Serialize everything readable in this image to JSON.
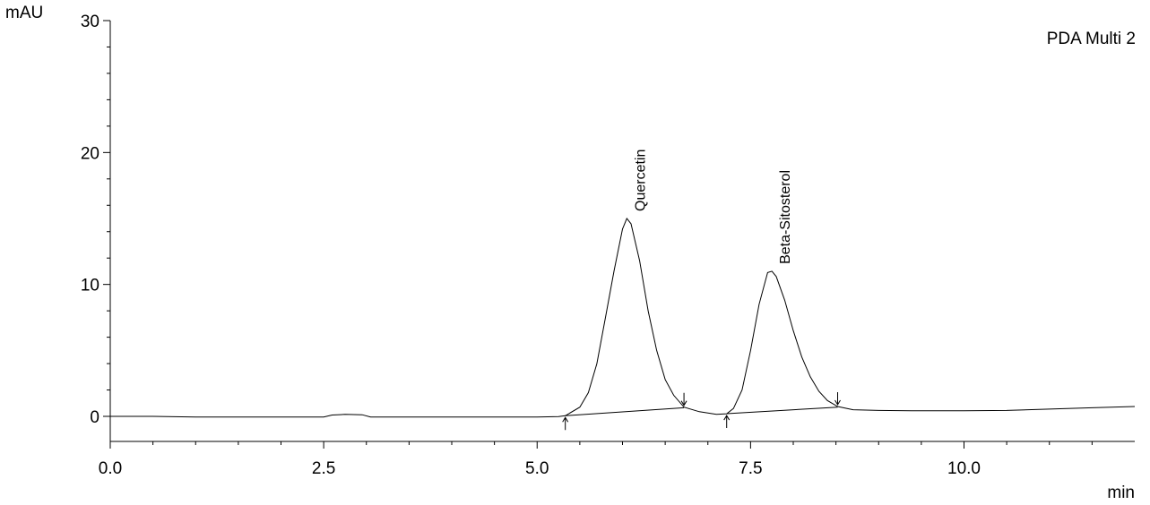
{
  "chart_data": {
    "type": "line",
    "title": "",
    "legend": "PDA Multi 2",
    "legend_position": "top-right",
    "xlabel": "min",
    "ylabel": "mAU",
    "xlim": [
      0.0,
      12.0
    ],
    "ylim": [
      -1.9,
      30
    ],
    "x_ticks": [
      "0.0",
      "2.5",
      "5.0",
      "7.5",
      "10.0"
    ],
    "y_ticks": [
      "0",
      "10",
      "20",
      "30"
    ],
    "grid": false,
    "series": [
      {
        "points": [
          [
            0.0,
            0.0
          ],
          [
            0.5,
            0.0
          ],
          [
            1.0,
            -0.05
          ],
          [
            1.5,
            -0.05
          ],
          [
            2.0,
            -0.05
          ],
          [
            2.5,
            -0.05
          ],
          [
            2.6,
            0.1
          ],
          [
            2.75,
            0.15
          ],
          [
            2.95,
            0.12
          ],
          [
            3.05,
            -0.05
          ],
          [
            3.5,
            -0.05
          ],
          [
            4.0,
            -0.05
          ],
          [
            4.5,
            -0.05
          ],
          [
            5.0,
            -0.05
          ],
          [
            5.25,
            -0.02
          ],
          [
            5.33,
            0.05
          ],
          [
            5.5,
            0.7
          ],
          [
            5.6,
            1.8
          ],
          [
            5.7,
            4.0
          ],
          [
            5.8,
            7.5
          ],
          [
            5.9,
            11.0
          ],
          [
            6.0,
            14.2
          ],
          [
            6.05,
            15.0
          ],
          [
            6.1,
            14.6
          ],
          [
            6.2,
            11.8
          ],
          [
            6.3,
            8.0
          ],
          [
            6.4,
            5.0
          ],
          [
            6.5,
            2.8
          ],
          [
            6.6,
            1.6
          ],
          [
            6.72,
            0.7
          ],
          [
            6.9,
            0.35
          ],
          [
            7.1,
            0.15
          ],
          [
            7.22,
            0.2
          ],
          [
            7.3,
            0.6
          ],
          [
            7.4,
            2.0
          ],
          [
            7.5,
            5.0
          ],
          [
            7.6,
            8.5
          ],
          [
            7.7,
            10.9
          ],
          [
            7.75,
            11.0
          ],
          [
            7.8,
            10.6
          ],
          [
            7.9,
            8.8
          ],
          [
            8.0,
            6.5
          ],
          [
            8.1,
            4.5
          ],
          [
            8.2,
            3.0
          ],
          [
            8.3,
            1.9
          ],
          [
            8.4,
            1.2
          ],
          [
            8.52,
            0.75
          ],
          [
            8.7,
            0.5
          ],
          [
            9.0,
            0.45
          ],
          [
            9.5,
            0.42
          ],
          [
            10.0,
            0.42
          ],
          [
            10.5,
            0.45
          ],
          [
            11.0,
            0.55
          ],
          [
            11.5,
            0.65
          ],
          [
            12.0,
            0.75
          ]
        ]
      }
    ],
    "baselines": [
      {
        "x": [
          5.33,
          6.72
        ],
        "y": [
          0.05,
          0.65
        ]
      },
      {
        "x": [
          7.22,
          8.52
        ],
        "y": [
          0.2,
          0.7
        ]
      }
    ],
    "peaks": [
      {
        "name": "Quercetin",
        "apex_x": 6.05,
        "apex_y": 15.0,
        "start_x": 5.33,
        "start_y": 0.05,
        "end_x": 6.72,
        "end_y": 0.7
      },
      {
        "name": "Beta-Sitosterol",
        "apex_x": 7.75,
        "apex_y": 11.0,
        "start_x": 7.22,
        "start_y": 0.2,
        "end_x": 8.52,
        "end_y": 0.75
      }
    ],
    "colors": {
      "line": "#000000",
      "axis": "#000000"
    }
  }
}
